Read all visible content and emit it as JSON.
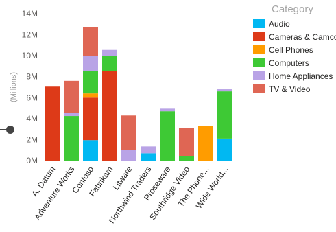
{
  "chart_data": {
    "type": "bar",
    "stacked": true,
    "title": "",
    "xlabel": "",
    "ylabel": "(Millions)",
    "ylim": [
      0,
      14000000
    ],
    "y_ticks": [
      "0M",
      "2M",
      "4M",
      "6M",
      "8M",
      "10M",
      "12M",
      "14M"
    ],
    "categories": [
      "A. Datum",
      "Adventure Works",
      "Contoso",
      "Fabrikam",
      "Litware",
      "Northwind Traders",
      "Proseware",
      "Southridge Video",
      "The Phone...",
      "Wide World..."
    ],
    "series": [
      {
        "name": "Audio",
        "color": "#01b8f2",
        "values": [
          0,
          0,
          1950000,
          0,
          0,
          700000,
          0,
          0,
          0,
          2100000
        ]
      },
      {
        "name": "Cameras & Camcorders",
        "color": "#dd3a18",
        "values": [
          7050000,
          0,
          4050000,
          8550000,
          0,
          0,
          0,
          0,
          0,
          0
        ]
      },
      {
        "name": "Cell Phones",
        "color": "#ff9c00",
        "values": [
          0,
          0,
          400000,
          0,
          0,
          0,
          0,
          0,
          3300000,
          0
        ]
      },
      {
        "name": "Computers",
        "color": "#3ec935",
        "values": [
          0,
          4250000,
          2150000,
          1450000,
          0,
          0,
          4700000,
          400000,
          0,
          4500000
        ]
      },
      {
        "name": "Home Appliances",
        "color": "#b9a3e6",
        "values": [
          0,
          300000,
          1450000,
          550000,
          1000000,
          650000,
          250000,
          0,
          0,
          200000
        ]
      },
      {
        "name": "TV & Video",
        "color": "#df6654",
        "values": [
          0,
          3050000,
          2700000,
          0,
          3300000,
          0,
          0,
          2700000,
          0,
          0
        ]
      }
    ],
    "legend": {
      "title": "Category",
      "position": "right"
    },
    "grid": false
  }
}
